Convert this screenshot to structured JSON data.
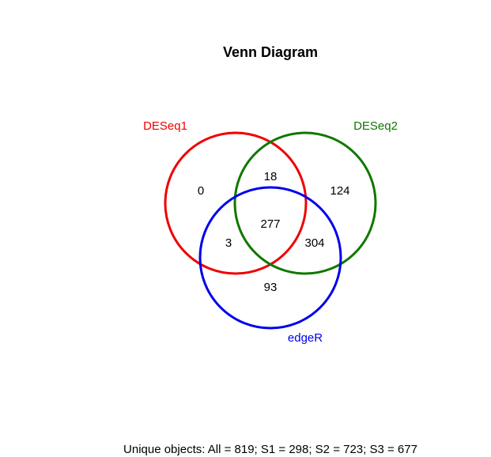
{
  "title": "Venn Diagram",
  "sets": [
    {
      "id": "S1",
      "label": "DESeq1",
      "color": "#ee0000"
    },
    {
      "id": "S2",
      "label": "DESeq2",
      "color": "#117700"
    },
    {
      "id": "S3",
      "label": "edgeR",
      "color": "#0000ee"
    }
  ],
  "regions": {
    "s1_only": "0",
    "s1_s2": "18",
    "s2_only": "124",
    "s1_s2_s3": "277",
    "s1_s3": "3",
    "s2_s3": "304",
    "s3_only": "93"
  },
  "footer": "Unique objects: All = 819; S1 = 298; S2 = 723; S3 = 677"
}
